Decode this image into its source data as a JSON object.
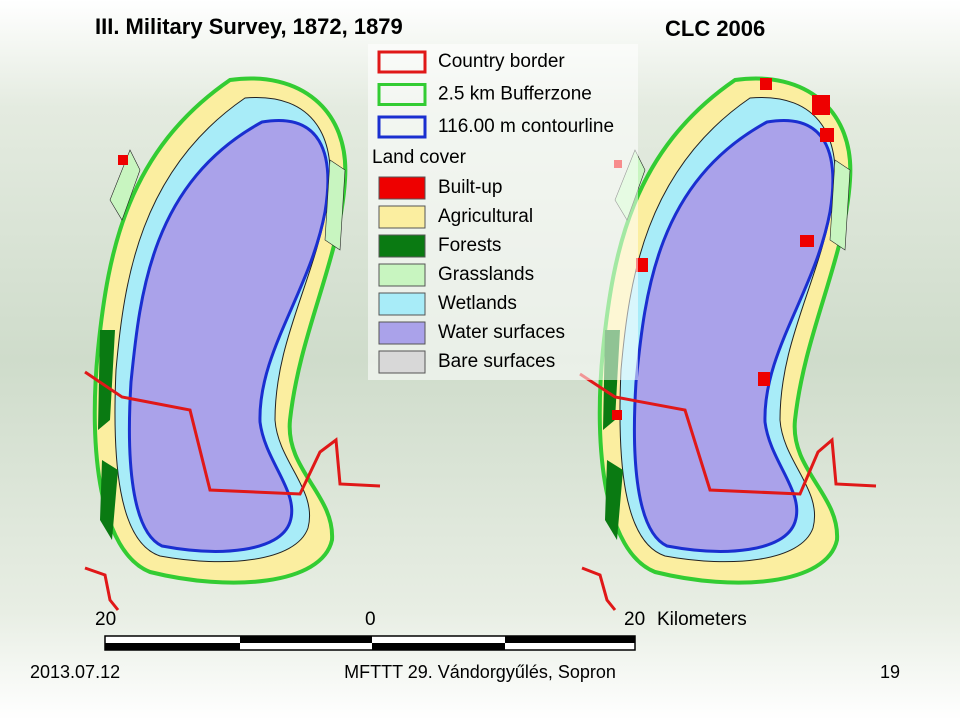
{
  "title": "III. Military Survey, 1872, 1879",
  "right_title": "CLC 2006",
  "legend": {
    "lines": [
      {
        "label": "Country border",
        "color": "#e01818"
      },
      {
        "label": "2.5 km Bufferzone",
        "color": "#33cc33"
      },
      {
        "label": "116.00 m contourline",
        "color": "#1a2fd0"
      }
    ],
    "heading": "Land cover",
    "items": [
      {
        "label": "Built-up",
        "color": "#ee0000"
      },
      {
        "label": "Agricultural",
        "color": "#fbeea0"
      },
      {
        "label": "Forests",
        "color": "#0a7a12"
      },
      {
        "label": "Grasslands",
        "color": "#c8f5c0"
      },
      {
        "label": "Wetlands",
        "color": "#a8ecf8"
      },
      {
        "label": "Water surfaces",
        "color": "#aaa2ea"
      },
      {
        "label": "Bare surfaces",
        "color": "#d8d8d8"
      }
    ]
  },
  "scale": {
    "left": "20",
    "middle": "0",
    "right": "20",
    "unit": "Kilometers"
  },
  "footer": {
    "date": "2013.07.12",
    "event": "MFTTT 29. Vándorgyűlés, Sopron",
    "page": "19"
  }
}
